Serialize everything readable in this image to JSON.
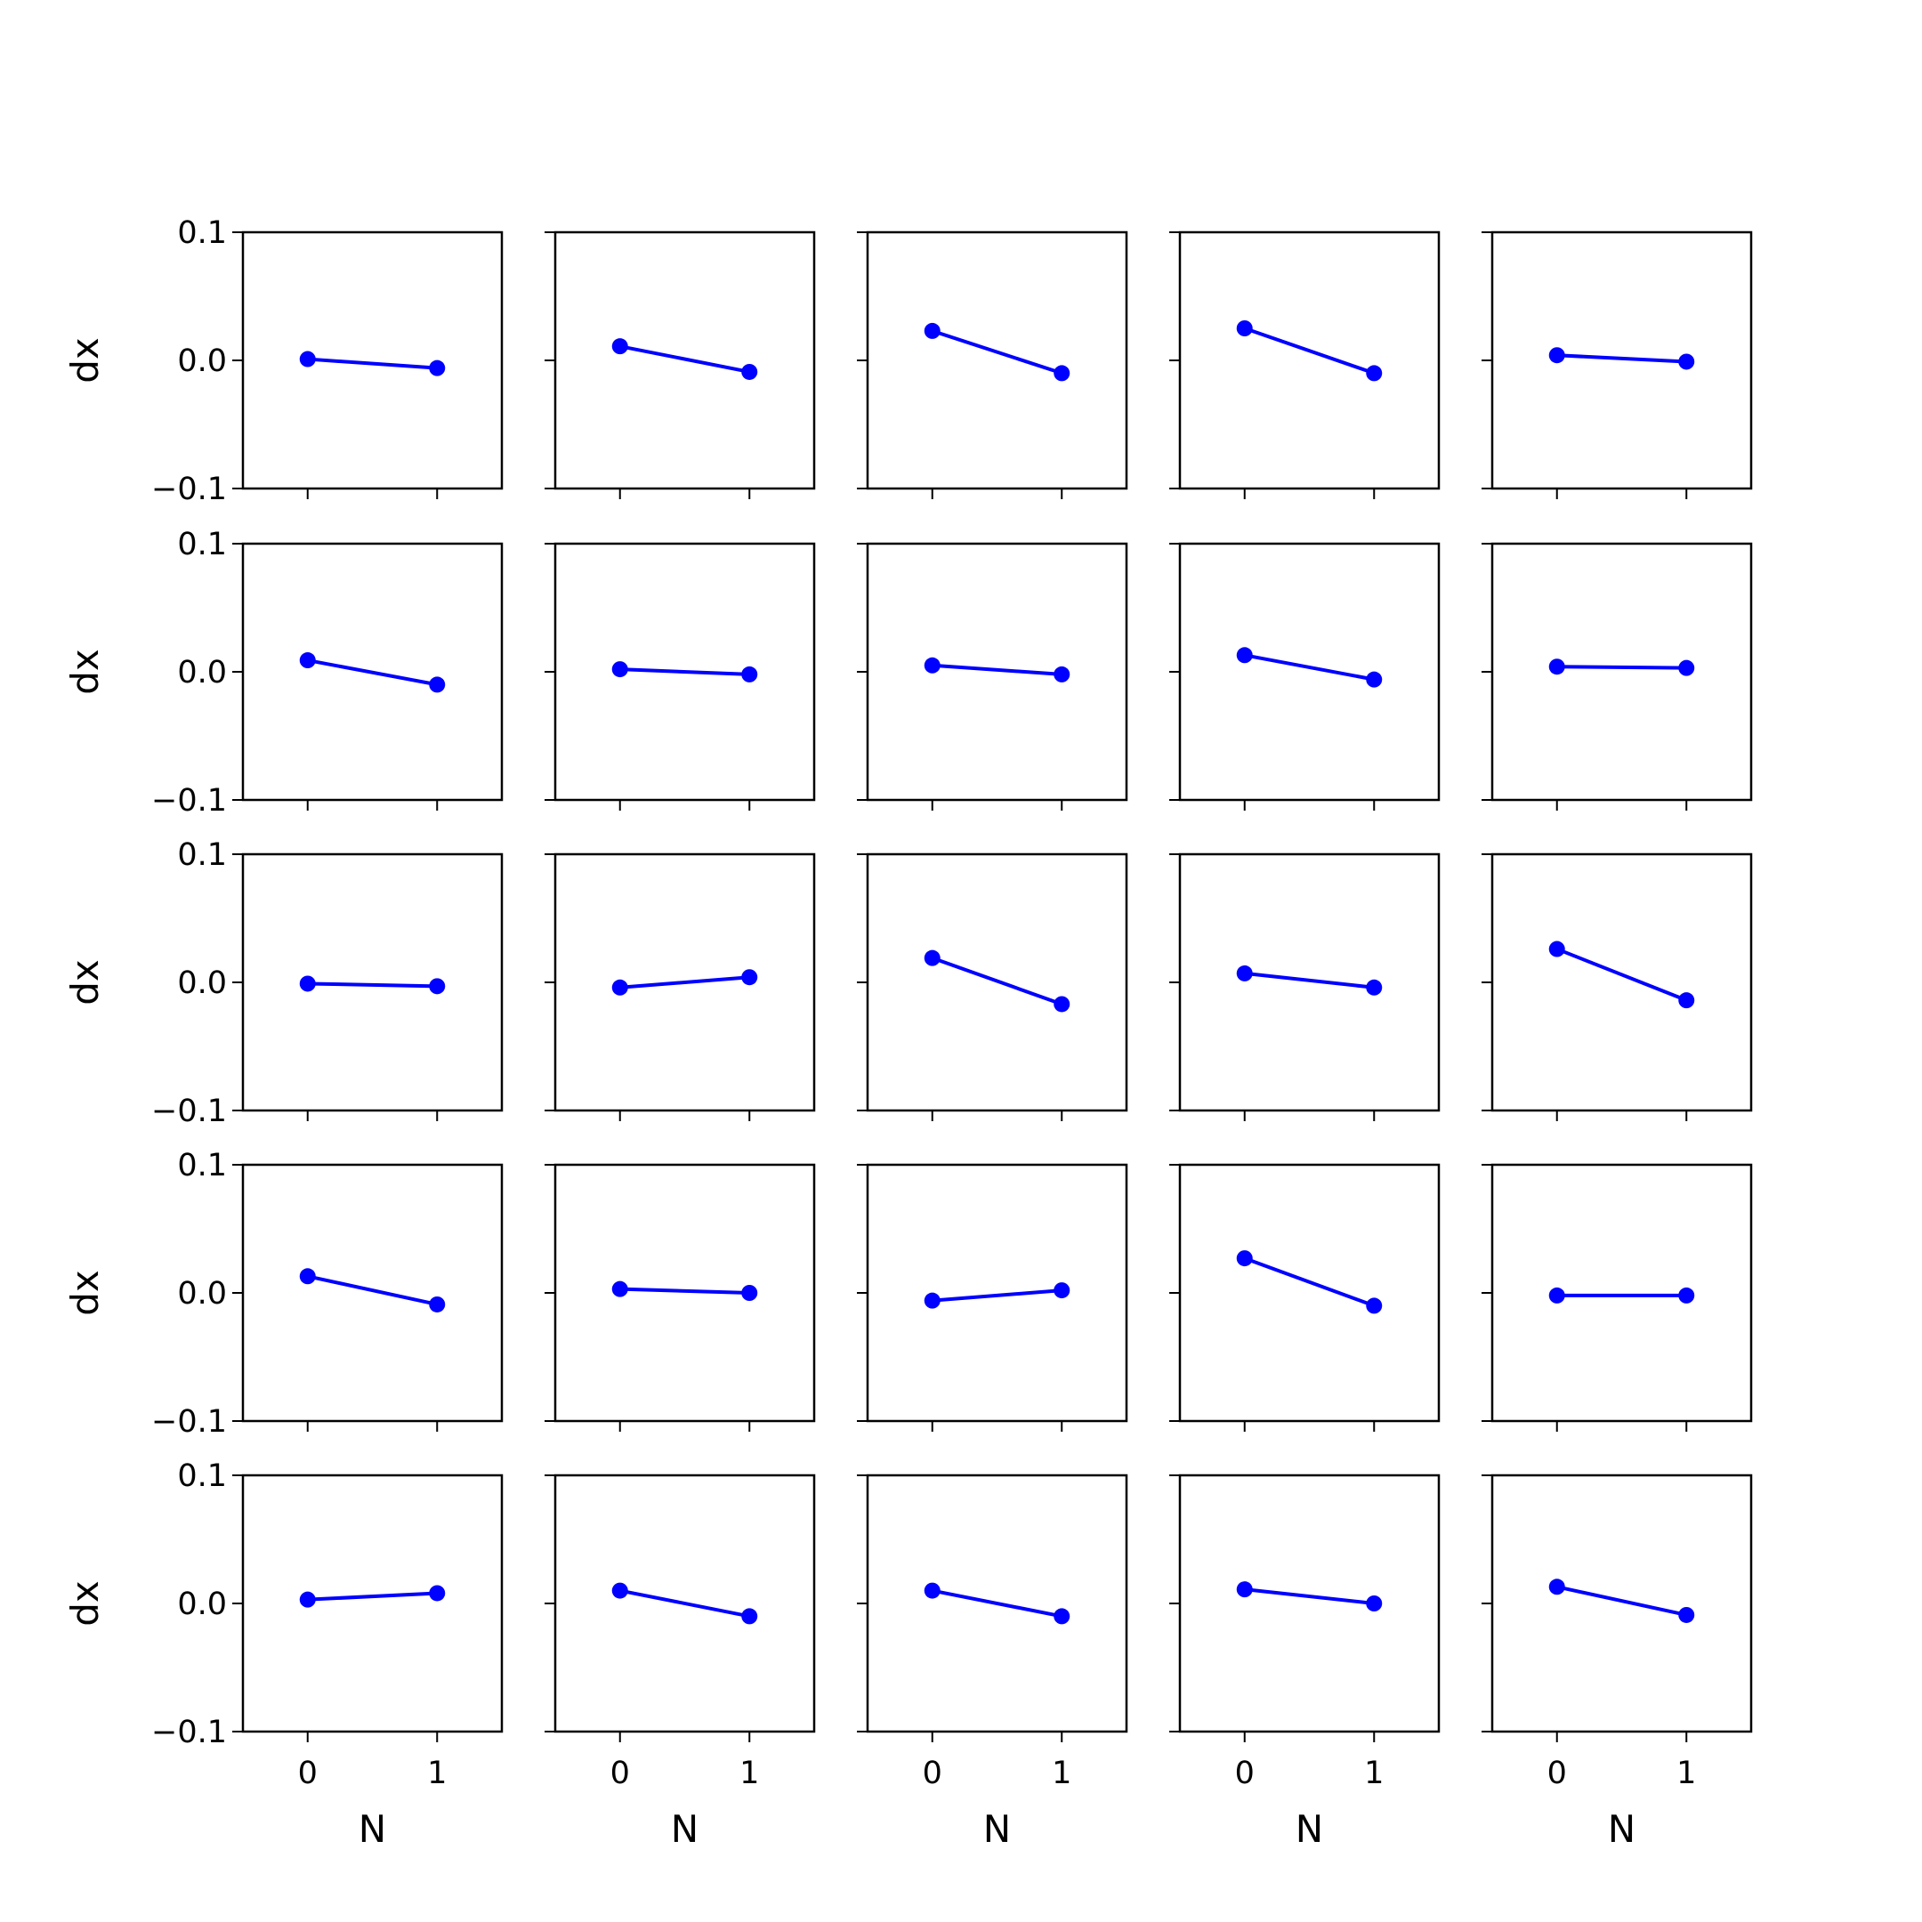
{
  "chart_data": {
    "type": "line",
    "layout": "5x5 grid of small multiples",
    "xlabel": "N",
    "ylabel": "dx",
    "x": [
      0,
      1
    ],
    "xticks": [
      "0",
      "1"
    ],
    "yticks": [
      "−0.1",
      "0.0",
      "0.1"
    ],
    "xlim": [
      -0.5,
      1.5
    ],
    "ylim": [
      -0.1,
      0.1
    ],
    "grid": false,
    "line_color": "#0000ff",
    "marker": "filled circle",
    "panels": [
      {
        "row": 1,
        "col": 1,
        "y": [
          0.001,
          -0.006
        ]
      },
      {
        "row": 1,
        "col": 2,
        "y": [
          0.011,
          -0.009
        ]
      },
      {
        "row": 1,
        "col": 3,
        "y": [
          0.023,
          -0.01
        ]
      },
      {
        "row": 1,
        "col": 4,
        "y": [
          0.025,
          -0.01
        ]
      },
      {
        "row": 1,
        "col": 5,
        "y": [
          0.004,
          -0.001
        ]
      },
      {
        "row": 2,
        "col": 1,
        "y": [
          0.009,
          -0.01
        ]
      },
      {
        "row": 2,
        "col": 2,
        "y": [
          0.002,
          -0.002
        ]
      },
      {
        "row": 2,
        "col": 3,
        "y": [
          0.005,
          -0.002
        ]
      },
      {
        "row": 2,
        "col": 4,
        "y": [
          0.013,
          -0.006
        ]
      },
      {
        "row": 2,
        "col": 5,
        "y": [
          0.004,
          0.003
        ]
      },
      {
        "row": 3,
        "col": 1,
        "y": [
          -0.001,
          -0.003
        ]
      },
      {
        "row": 3,
        "col": 2,
        "y": [
          -0.004,
          0.004
        ]
      },
      {
        "row": 3,
        "col": 3,
        "y": [
          0.019,
          -0.017
        ]
      },
      {
        "row": 3,
        "col": 4,
        "y": [
          0.007,
          -0.004
        ]
      },
      {
        "row": 3,
        "col": 5,
        "y": [
          0.026,
          -0.014
        ]
      },
      {
        "row": 4,
        "col": 1,
        "y": [
          0.013,
          -0.009
        ]
      },
      {
        "row": 4,
        "col": 2,
        "y": [
          0.003,
          0.0
        ]
      },
      {
        "row": 4,
        "col": 3,
        "y": [
          -0.006,
          0.002
        ]
      },
      {
        "row": 4,
        "col": 4,
        "y": [
          0.027,
          -0.01
        ]
      },
      {
        "row": 4,
        "col": 5,
        "y": [
          -0.002,
          -0.002
        ]
      },
      {
        "row": 5,
        "col": 1,
        "y": [
          0.003,
          0.008
        ]
      },
      {
        "row": 5,
        "col": 2,
        "y": [
          0.01,
          -0.01
        ]
      },
      {
        "row": 5,
        "col": 3,
        "y": [
          0.01,
          -0.01
        ]
      },
      {
        "row": 5,
        "col": 4,
        "y": [
          0.011,
          0.0
        ]
      },
      {
        "row": 5,
        "col": 5,
        "y": [
          0.013,
          -0.009
        ]
      }
    ]
  }
}
